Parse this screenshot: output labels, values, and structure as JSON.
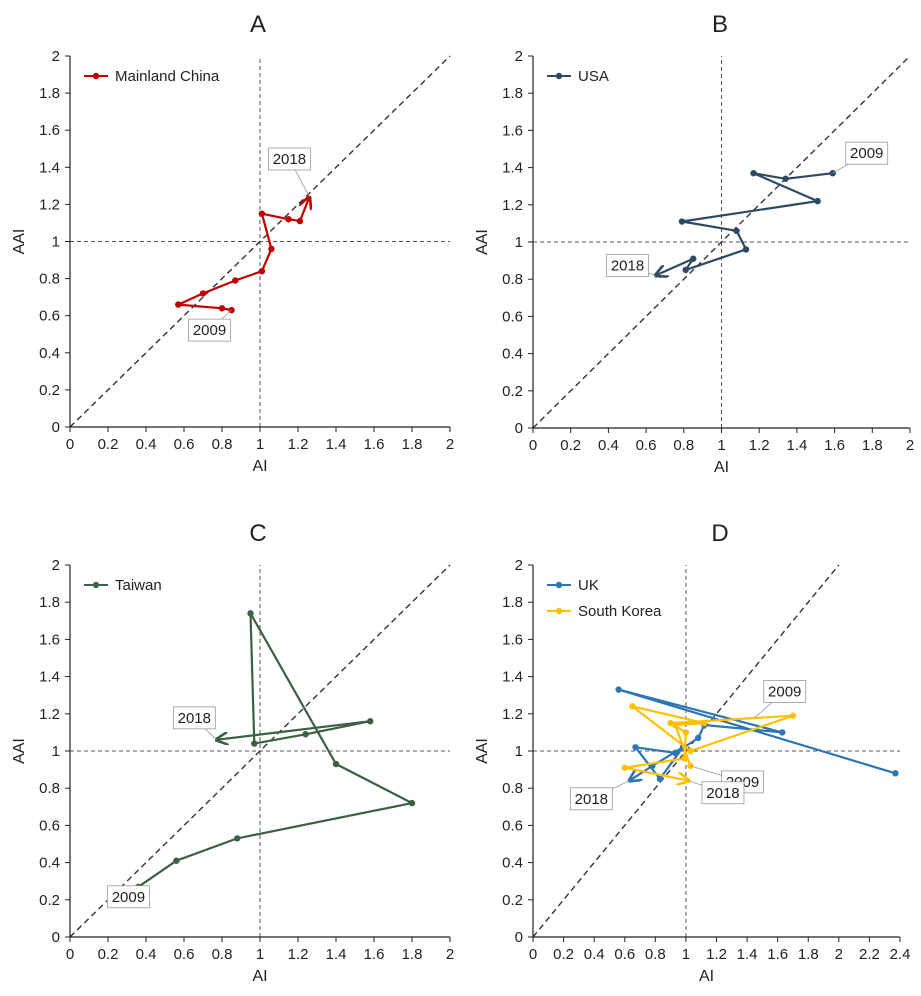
{
  "figure": {
    "x_tick_format": "trim"
  },
  "chart_data": [
    {
      "panel": "A",
      "type": "line",
      "xlabel": "AI",
      "ylabel": "AAI",
      "xlim": [
        0,
        2
      ],
      "ylim": [
        0,
        2
      ],
      "x_ticks": [
        0,
        0.2,
        0.4,
        0.6,
        0.8,
        1,
        1.2,
        1.4,
        1.6,
        1.8,
        2
      ],
      "y_ticks": [
        0,
        0.2,
        0.4,
        0.6,
        0.8,
        1,
        1.2,
        1.4,
        1.6,
        1.8,
        2
      ],
      "reference_lines": {
        "vertical_x": 1,
        "horizontal_y": 1,
        "diagonal": "y = x"
      },
      "grid": false,
      "legend_position": "top-left",
      "series": [
        {
          "name": "Mainland China",
          "color": "#c00000",
          "x": [
            0.85,
            0.8,
            0.57,
            0.7,
            0.87,
            1.01,
            1.06,
            1.01,
            1.15,
            1.21,
            1.26
          ],
          "y": [
            0.63,
            0.64,
            0.66,
            0.72,
            0.79,
            0.84,
            0.96,
            1.15,
            1.12,
            1.11,
            1.24
          ],
          "arrow_at_end": true
        }
      ],
      "annotations": [
        {
          "text": "2009",
          "at": [
            0.85,
            0.63
          ]
        },
        {
          "text": "2018",
          "at": [
            1.26,
            1.24
          ]
        }
      ]
    },
    {
      "panel": "B",
      "type": "line",
      "xlabel": "AI",
      "ylabel": "AAI",
      "xlim": [
        0,
        2
      ],
      "ylim": [
        0,
        2
      ],
      "x_ticks": [
        0,
        0.2,
        0.4,
        0.6,
        0.8,
        1,
        1.2,
        1.4,
        1.6,
        1.8,
        2
      ],
      "y_ticks": [
        0,
        0.2,
        0.4,
        0.6,
        0.8,
        1,
        1.2,
        1.4,
        1.6,
        1.8,
        2
      ],
      "reference_lines": {
        "vertical_x": 1,
        "horizontal_y": 1,
        "diagonal": "y = x"
      },
      "grid": false,
      "legend_position": "top-left",
      "series": [
        {
          "name": "USA",
          "color": "#2e4a62",
          "x": [
            1.59,
            1.34,
            1.17,
            1.51,
            0.79,
            1.08,
            1.13,
            0.81,
            0.85,
            0.65
          ],
          "y": [
            1.37,
            1.34,
            1.37,
            1.22,
            1.11,
            1.06,
            0.96,
            0.85,
            0.91,
            0.82
          ],
          "arrow_at_end": true
        }
      ],
      "annotations": [
        {
          "text": "2009",
          "at": [
            1.59,
            1.37
          ]
        },
        {
          "text": "2018",
          "at": [
            0.65,
            0.82
          ]
        }
      ]
    },
    {
      "panel": "C",
      "type": "line",
      "xlabel": "AI",
      "ylabel": "AAI",
      "xlim": [
        0,
        2
      ],
      "ylim": [
        0,
        2
      ],
      "x_ticks": [
        0,
        0.2,
        0.4,
        0.6,
        0.8,
        1,
        1.2,
        1.4,
        1.6,
        1.8,
        2
      ],
      "y_ticks": [
        0,
        0.2,
        0.4,
        0.6,
        0.8,
        1,
        1.2,
        1.4,
        1.6,
        1.8,
        2
      ],
      "reference_lines": {
        "vertical_x": 1,
        "horizontal_y": 1,
        "diagonal": "y = x"
      },
      "grid": false,
      "legend_position": "top-left",
      "series": [
        {
          "name": "Taiwan",
          "color": "#3d5f45",
          "x": [
            0.36,
            0.56,
            0.88,
            1.8,
            1.4,
            0.95,
            0.97,
            1.24,
            1.58,
            0.77
          ],
          "y": [
            0.27,
            0.41,
            0.53,
            0.72,
            0.93,
            1.74,
            1.04,
            1.09,
            1.16,
            1.06
          ],
          "arrow_at_end": true
        }
      ],
      "annotations": [
        {
          "text": "2009",
          "at": [
            0.36,
            0.27
          ]
        },
        {
          "text": "2018",
          "at": [
            0.77,
            1.06
          ]
        }
      ]
    },
    {
      "panel": "D",
      "type": "line",
      "xlabel": "AI",
      "ylabel": "AAI",
      "xlim": [
        0,
        2.4
      ],
      "ylim": [
        0,
        2
      ],
      "x_ticks": [
        0,
        0.2,
        0.4,
        0.6,
        0.8,
        1,
        1.2,
        1.4,
        1.6,
        1.8,
        2,
        2.2,
        2.4
      ],
      "y_ticks": [
        0,
        0.2,
        0.4,
        0.6,
        0.8,
        1,
        1.2,
        1.4,
        1.6,
        1.8,
        2
      ],
      "reference_lines": {
        "vertical_x": 1,
        "horizontal_y": 1,
        "diagonal": "y = x"
      },
      "grid": false,
      "legend_position": "top-left",
      "series": [
        {
          "name": "UK",
          "color": "#2e75b6",
          "x": [
            2.37,
            0.56,
            1.63,
            1.12,
            1.08,
            0.93,
            0.67,
            0.83,
            0.98,
            0.78,
            0.63
          ],
          "y": [
            0.88,
            1.33,
            1.1,
            1.14,
            1.07,
            0.99,
            1.02,
            0.85,
            1.02,
            0.92,
            0.84
          ],
          "arrow_at_end": true
        },
        {
          "name": "South Korea",
          "color": "#ffc000",
          "x": [
            1.03,
            0.93,
            1.12,
            0.65,
            1.03,
            1.7,
            0.9,
            1.0,
            0.99,
            0.6,
            1.02
          ],
          "y": [
            0.92,
            1.14,
            1.15,
            1.24,
            1.0,
            1.19,
            1.15,
            1.1,
            0.96,
            0.91,
            0.84
          ],
          "arrow_at_end": true
        }
      ],
      "annotations": [
        {
          "text": "2009",
          "at": [
            1.45,
            1.18
          ],
          "series": "UK"
        },
        {
          "text": "2009",
          "at": [
            1.03,
            0.92
          ],
          "series": "South Korea"
        },
        {
          "text": "2018",
          "at": [
            0.63,
            0.84
          ],
          "series": "UK"
        },
        {
          "text": "2018",
          "at": [
            1.02,
            0.84
          ],
          "series": "South Korea"
        }
      ]
    }
  ]
}
